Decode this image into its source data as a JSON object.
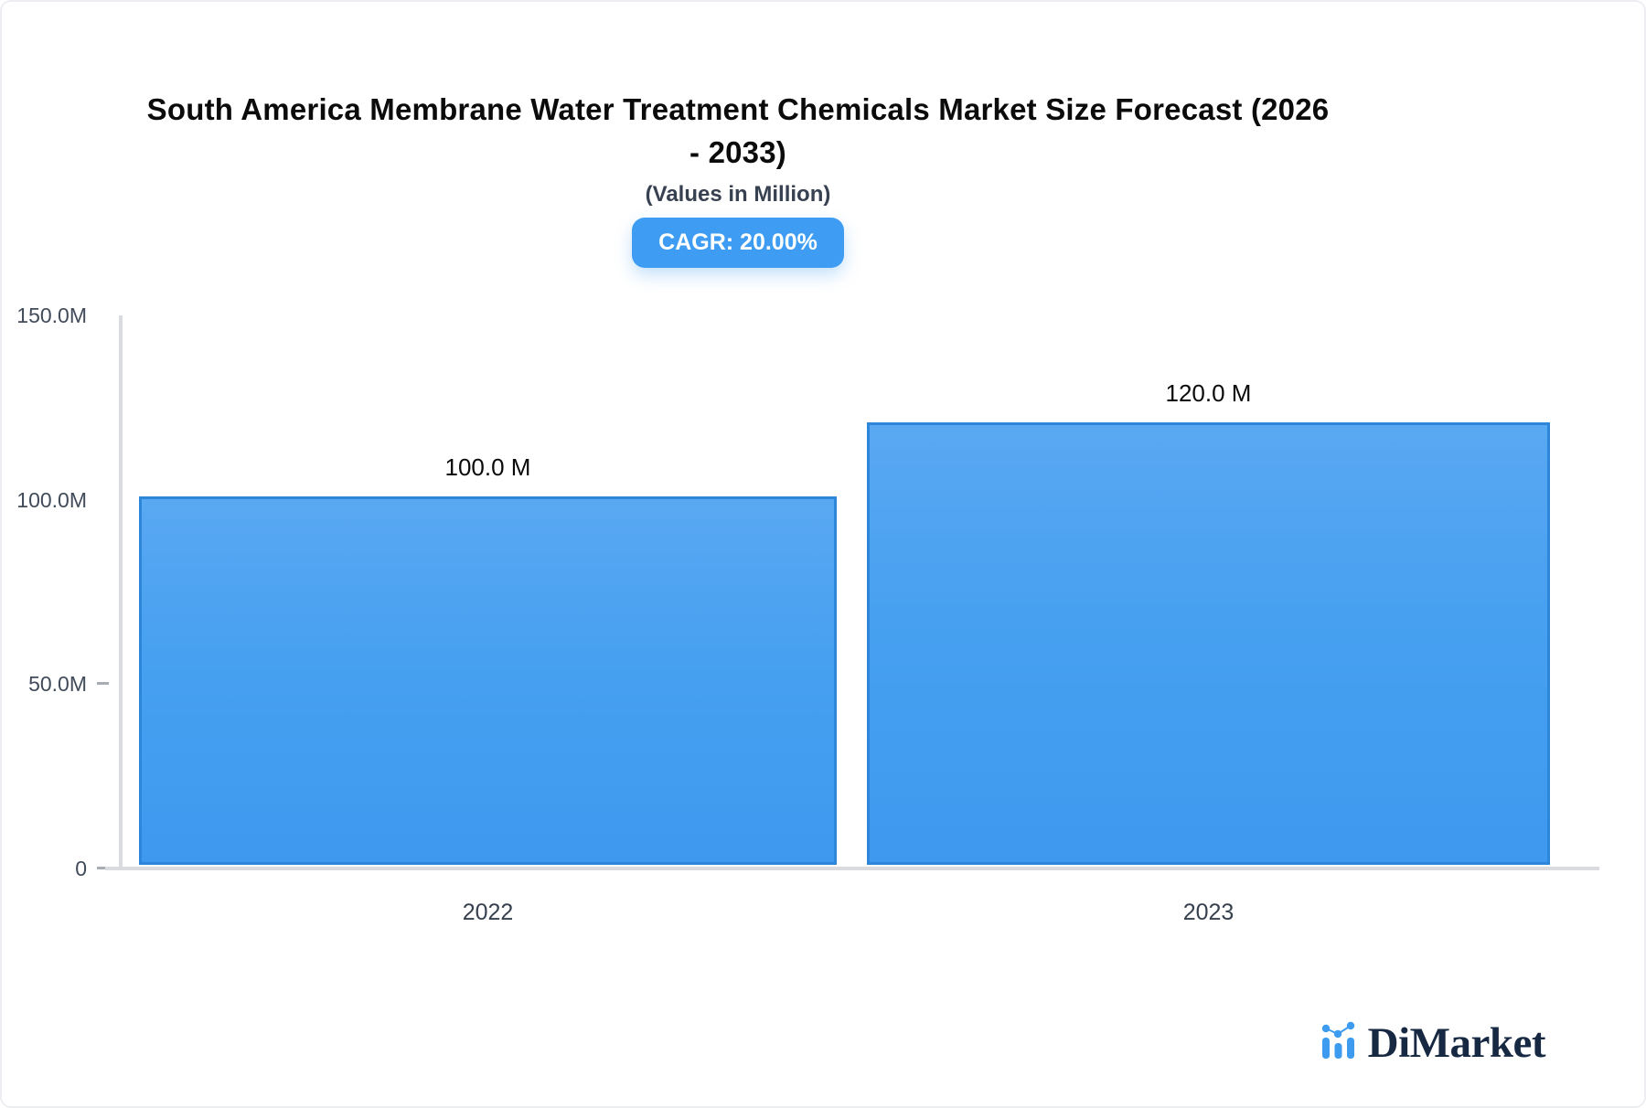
{
  "header": {
    "title": "South America Membrane Water Treatment Chemicals Market Size Forecast (2026 - 2033)",
    "title_lines": [
      "South America Membrane Water Treatment Chemicals Market Size Forecast (2026",
      "- 2033)"
    ],
    "subtitle": "(Values in Million)",
    "cagr_badge": "CAGR: 20.00%"
  },
  "chart_data": {
    "type": "bar",
    "title": "South America Membrane Water Treatment Chemicals Market Size Forecast (2026 - 2033)",
    "subtitle": "(Values in Million)",
    "unit": "Million",
    "cagr_percent": "20.00%",
    "categories": [
      "2022",
      "2023"
    ],
    "values": [
      100,
      120
    ],
    "value_labels": [
      "100.0 M",
      "120.0 M"
    ],
    "ylim": [
      0,
      150
    ],
    "yticks": [
      "150.0M",
      "100.0M",
      "50.0M",
      "0"
    ],
    "grid": false,
    "legend": false,
    "bar_gradient_top": "#59A8F2",
    "bar_gradient_bottom": "#3E99EF",
    "bar_border_color": "#2E86DA",
    "accent_color": "#3E9DF3"
  },
  "logo": {
    "text": "DiMarket",
    "icon": "bar-chart-trend-icon",
    "text_color": "#172842",
    "icon_color": "#3D9BF0"
  }
}
